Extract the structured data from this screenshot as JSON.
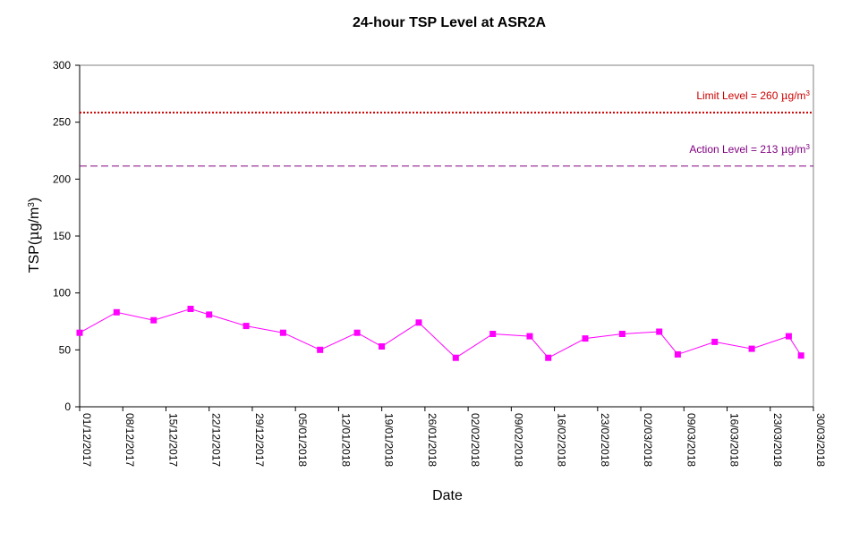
{
  "chart_data": {
    "type": "line",
    "title": "24-hour TSP Level at ASR2A",
    "xlabel": "Date",
    "ylabel": "TSP(µg/m3)",
    "ylabel_parts": [
      "TSP(",
      "µ",
      "g/m",
      "3",
      ")"
    ],
    "ylim": [
      0,
      300
    ],
    "yticks": [
      0,
      50,
      100,
      150,
      200,
      250,
      300
    ],
    "xlim": [
      "2017-12-01",
      "2018-03-30"
    ],
    "xtick_dates": [
      "2017-12-01",
      "2017-12-08",
      "2017-12-15",
      "2017-12-22",
      "2017-12-29",
      "2018-01-05",
      "2018-01-12",
      "2018-01-19",
      "2018-01-26",
      "2018-02-02",
      "2018-02-09",
      "2018-02-16",
      "2018-02-23",
      "2018-03-02",
      "2018-03-09",
      "2018-03-16",
      "2018-03-23",
      "2018-03-30"
    ],
    "xtick_labels": [
      "01/12/2017",
      "08/12/2017",
      "15/12/2017",
      "22/12/2017",
      "29/12/2017",
      "05/01/2018",
      "12/01/2018",
      "19/01/2018",
      "26/01/2018",
      "02/02/2018",
      "09/02/2018",
      "16/02/2018",
      "23/02/2018",
      "02/03/2018",
      "09/03/2018",
      "16/03/2018",
      "23/03/2018",
      "30/03/2018"
    ],
    "grid": false,
    "series": [
      {
        "color": "#ff00ff",
        "marker": "square",
        "x": [
          "2017-12-01",
          "2017-12-07",
          "2017-12-13",
          "2017-12-19",
          "2017-12-22",
          "2017-12-28",
          "2018-01-03",
          "2018-01-09",
          "2018-01-15",
          "2018-01-19",
          "2018-01-25",
          "2018-01-31",
          "2018-02-06",
          "2018-02-12",
          "2018-02-15",
          "2018-02-21",
          "2018-02-27",
          "2018-03-05",
          "2018-03-08",
          "2018-03-14",
          "2018-03-20",
          "2018-03-26",
          "2018-03-28"
        ],
        "values": [
          65,
          83,
          76,
          86,
          81,
          71,
          65,
          50,
          65,
          53,
          74,
          43,
          64,
          62,
          43,
          60,
          64,
          66,
          46,
          57,
          51,
          62,
          45
        ]
      }
    ],
    "reference_lines": [
      {
        "label_prefix": "Limit Level = 260 ",
        "label_mu": "µ",
        "label_unit": "g/m",
        "label_sup": "3",
        "value": 260,
        "color": "#cc0000",
        "style": "dotted"
      },
      {
        "label_prefix": "Action Level = 213 ",
        "label_mu": "µ",
        "label_unit": "g/m",
        "label_sup": "3",
        "value": 213,
        "color": "#800080",
        "style": "dashed"
      }
    ]
  }
}
